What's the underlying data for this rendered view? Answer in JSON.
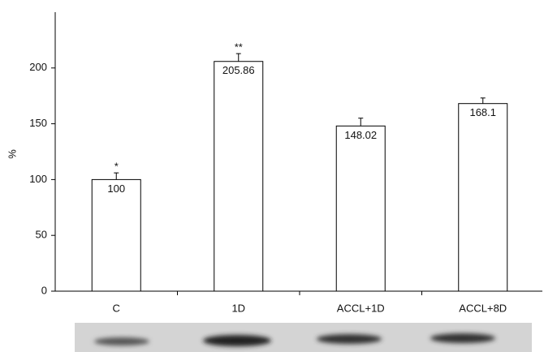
{
  "chart_data": {
    "type": "bar",
    "y_label": "%",
    "categories": [
      "C",
      "1D",
      "ACCL+1D",
      "ACCL+8D"
    ],
    "values": [
      100,
      205.86,
      148.02,
      168.1
    ],
    "errors": [
      6,
      7,
      7,
      5
    ],
    "significance": [
      "*",
      "**",
      null,
      null
    ],
    "color": "#ffffff",
    "ylim": [
      0,
      250
    ],
    "yticks": [
      0,
      50,
      100,
      150,
      200
    ],
    "grid": false
  }
}
